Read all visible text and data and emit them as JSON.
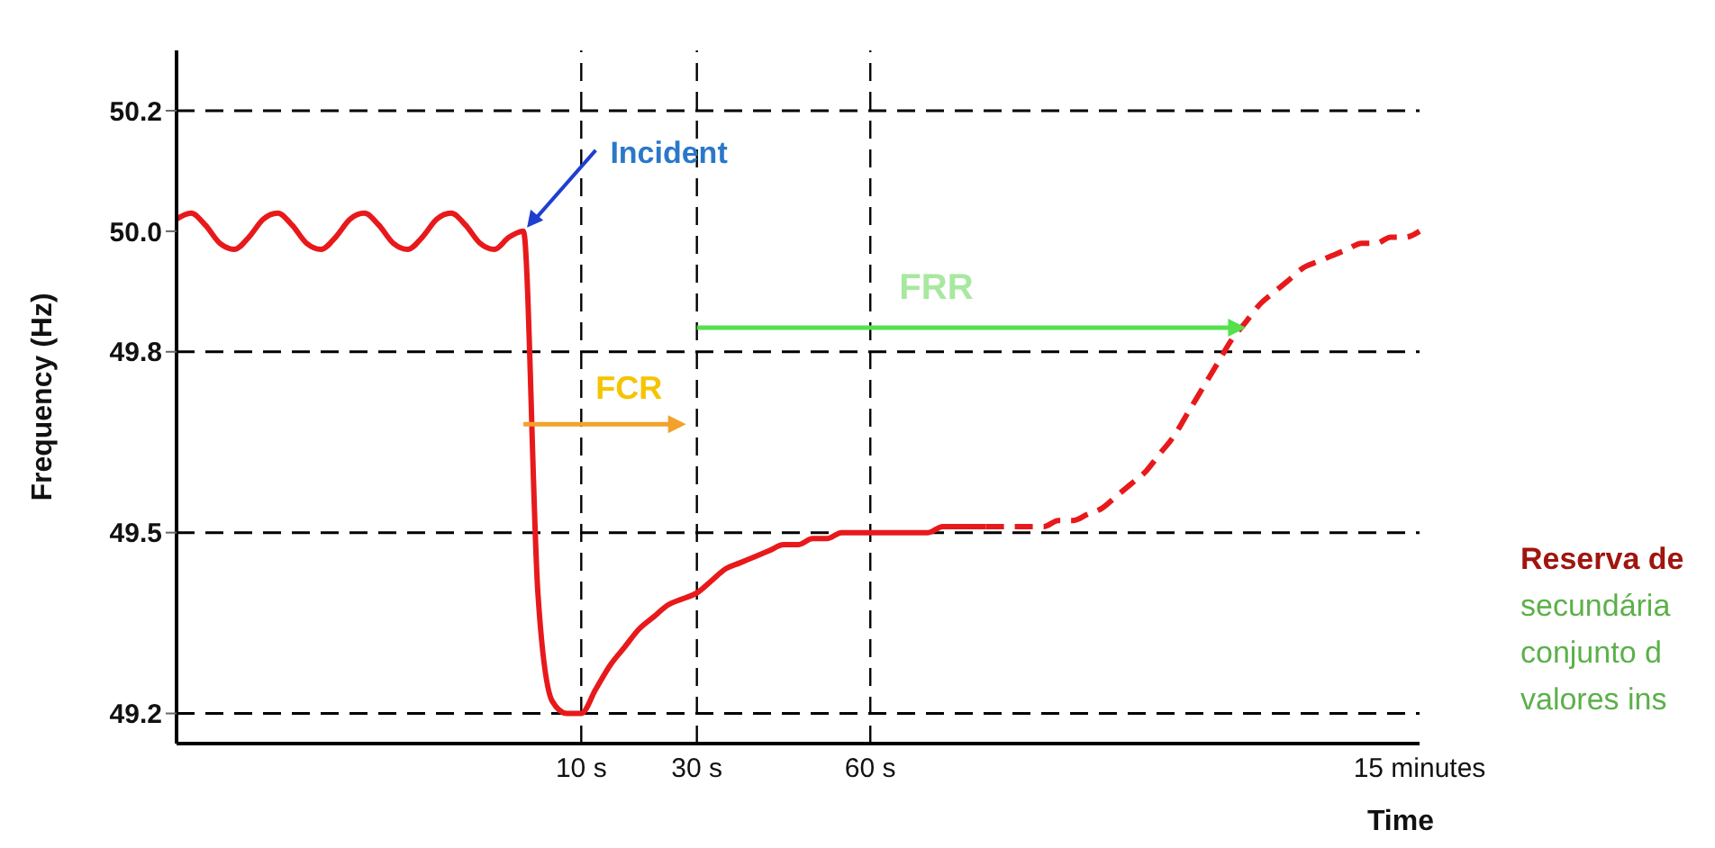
{
  "chart_data": {
    "type": "line",
    "xlabel": "Time",
    "ylabel": "Frequency (Hz)",
    "categories": [
      null,
      null,
      null,
      null,
      null,
      null,
      null,
      null,
      null,
      null,
      null,
      null,
      null,
      null,
      null,
      null,
      null,
      null,
      null,
      null,
      null,
      null,
      null,
      null,
      null,
      null,
      null,
      null,
      "10 s",
      null,
      null,
      null,
      null,
      null,
      null,
      null,
      "30 s",
      null,
      null,
      null,
      null,
      null,
      null,
      null,
      null,
      null,
      null,
      null,
      "60 s",
      null,
      null,
      null,
      null,
      null,
      null,
      null,
      null,
      null,
      null,
      null,
      null,
      null,
      null,
      null,
      null,
      null,
      null,
      null,
      null,
      null,
      null,
      null,
      null,
      null,
      null,
      null,
      null,
      null,
      null,
      null,
      null,
      null,
      null,
      null,
      null,
      null,
      "15 minutes"
    ],
    "series": [
      {
        "color": "#e8191b",
        "line_style": "solid",
        "values": [
          50.02,
          50.03,
          50.01,
          49.98,
          49.97,
          49.99,
          50.02,
          50.03,
          50.01,
          49.98,
          49.97,
          49.99,
          50.02,
          50.03,
          50.01,
          49.98,
          49.97,
          49.99,
          50.02,
          50.03,
          50.01,
          49.98,
          49.97,
          49.99,
          50.0,
          49.4,
          49.22,
          49.2,
          49.2,
          49.24,
          49.28,
          49.31,
          49.34,
          49.36,
          49.38,
          49.39,
          49.4,
          49.42,
          49.44,
          49.45,
          49.46,
          49.47,
          49.48,
          49.48,
          49.49,
          49.49,
          49.5,
          49.5,
          49.5,
          49.5,
          49.5,
          49.5,
          49.5,
          49.51,
          49.51,
          49.51,
          49.51,
          null,
          null,
          null,
          null,
          null,
          null,
          null,
          null,
          null,
          null,
          null,
          null,
          null,
          null,
          null,
          null,
          null,
          null,
          null,
          null,
          null,
          null,
          null,
          null,
          null,
          null,
          null,
          null,
          null,
          null
        ]
      },
      {
        "color": "#e8191b",
        "line_style": "dashed",
        "values": [
          null,
          null,
          null,
          null,
          null,
          null,
          null,
          null,
          null,
          null,
          null,
          null,
          null,
          null,
          null,
          null,
          null,
          null,
          null,
          null,
          null,
          null,
          null,
          null,
          null,
          null,
          null,
          null,
          null,
          null,
          null,
          null,
          null,
          null,
          null,
          null,
          null,
          null,
          null,
          null,
          null,
          null,
          null,
          null,
          null,
          null,
          null,
          null,
          null,
          null,
          null,
          null,
          null,
          null,
          null,
          null,
          49.51,
          49.51,
          49.51,
          49.51,
          49.51,
          49.52,
          49.52,
          49.53,
          49.54,
          49.56,
          49.58,
          49.6,
          49.63,
          49.66,
          49.7,
          49.74,
          49.78,
          49.82,
          49.85,
          49.88,
          49.9,
          49.92,
          49.94,
          49.95,
          49.96,
          49.97,
          49.98,
          49.98,
          49.99,
          49.99,
          50.0
        ]
      }
    ],
    "ylim": [
      49.15,
      50.3
    ],
    "yticks": [
      49.2,
      49.5,
      49.8,
      {
        "value": 50,
        "label": "50.0"
      },
      50.2
    ],
    "ref_lines": [
      {
        "axis": "y",
        "value": 50.2,
        "color": "#000000",
        "line_style": "dashed"
      },
      {
        "axis": "y",
        "value": 49.8,
        "color": "#000000",
        "line_style": "dashed"
      },
      {
        "axis": "y",
        "value": 49.5,
        "color": "#000000",
        "line_style": "dashed"
      },
      {
        "axis": "y",
        "value": 49.2,
        "color": "#000000",
        "line_style": "dashed"
      },
      {
        "axis": "x",
        "value": "10 s",
        "color": "#000000",
        "line_style": "dashed"
      },
      {
        "axis": "x",
        "value": "30 s",
        "color": "#000000",
        "line_style": "dashed"
      },
      {
        "axis": "x",
        "value": "60 s",
        "color": "#000000",
        "line_style": "dashed"
      }
    ],
    "annotations": [
      "Incident",
      {
        "text": "FCR",
        "x": "30 s",
        "y": 49.68
      },
      "FRR",
      "Reserva de",
      "secundária",
      "conjunto d",
      "valores ins"
    ]
  }
}
